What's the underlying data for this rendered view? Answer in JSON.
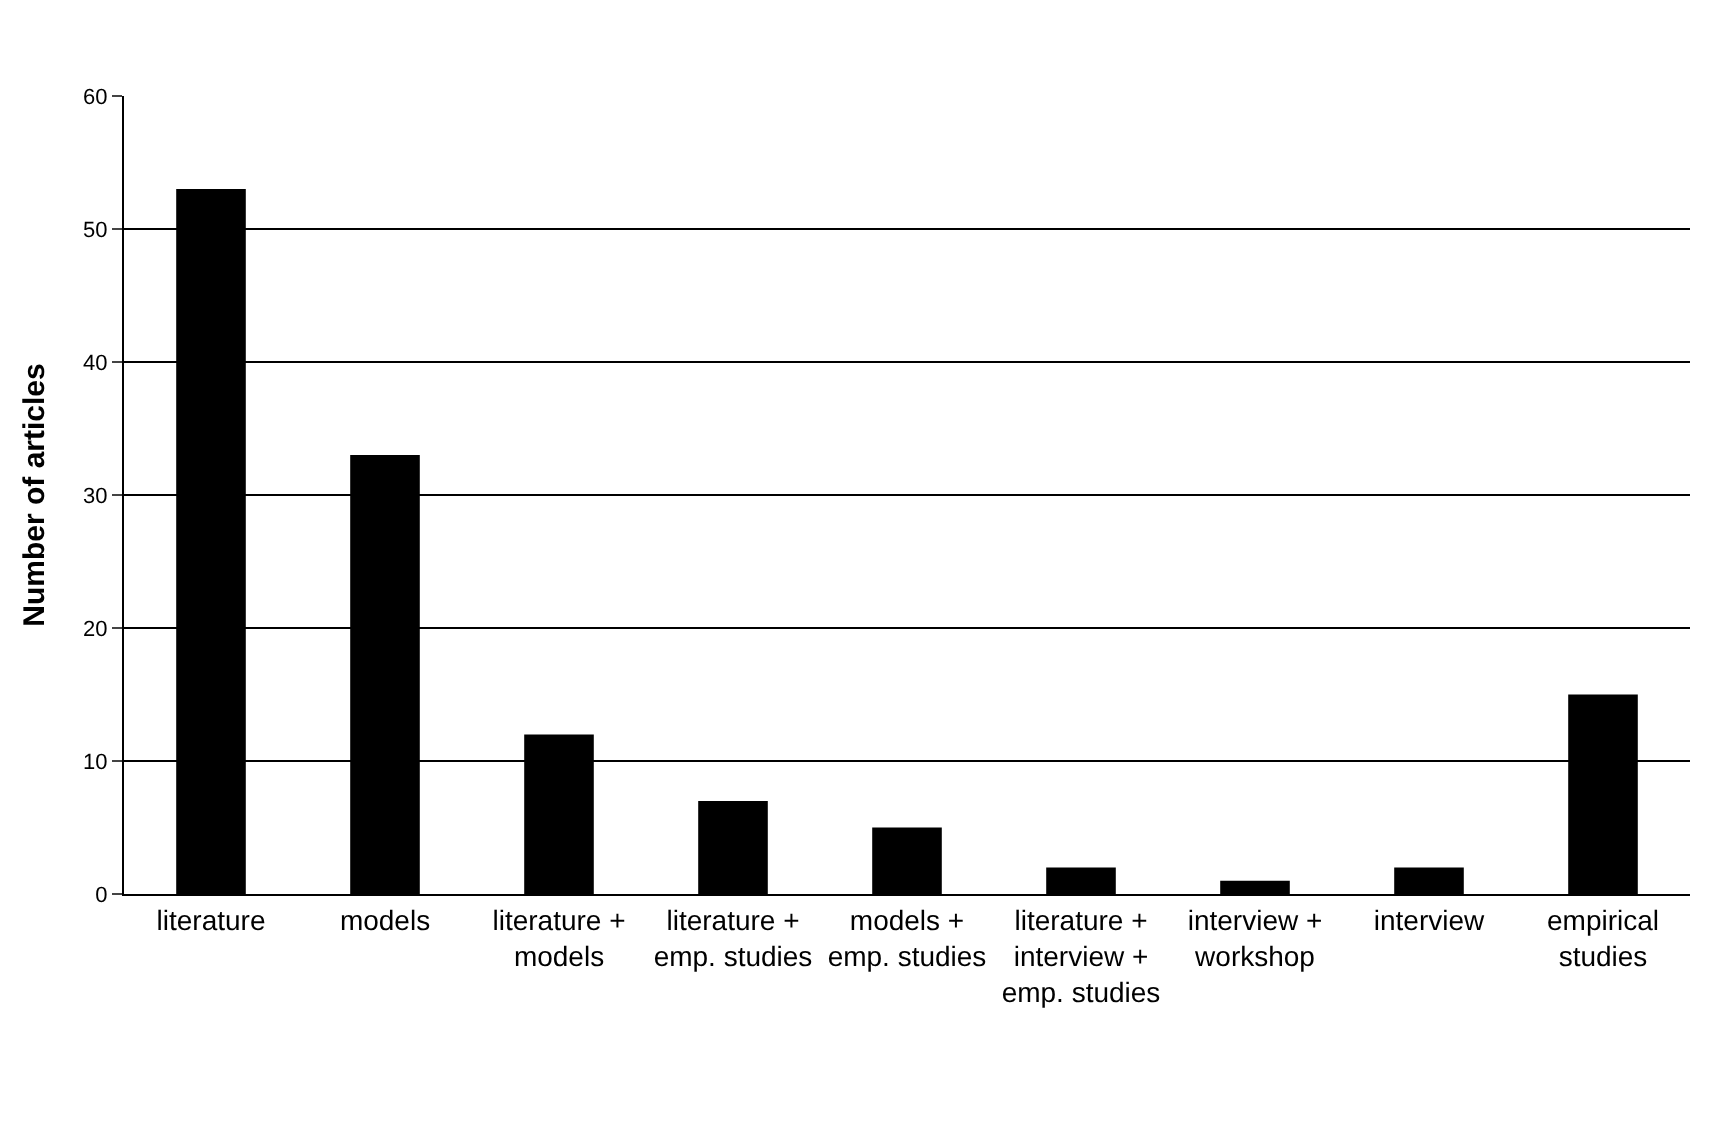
{
  "chart_data": {
    "type": "bar",
    "ylabel": "Number of articles",
    "categories": [
      "literature",
      "models",
      "literature + models",
      "literature + emp. studies",
      "models + emp. studies",
      "literature + interview + emp. studies",
      "interview + workshop",
      "interview",
      "empirical studies"
    ],
    "values": [
      53,
      33,
      12,
      7,
      5,
      2,
      1,
      2,
      15
    ],
    "color": "#000000",
    "ylim": [
      0,
      60
    ],
    "yticks": [
      0,
      10,
      20,
      30,
      40,
      50,
      60
    ],
    "grid": "y"
  }
}
